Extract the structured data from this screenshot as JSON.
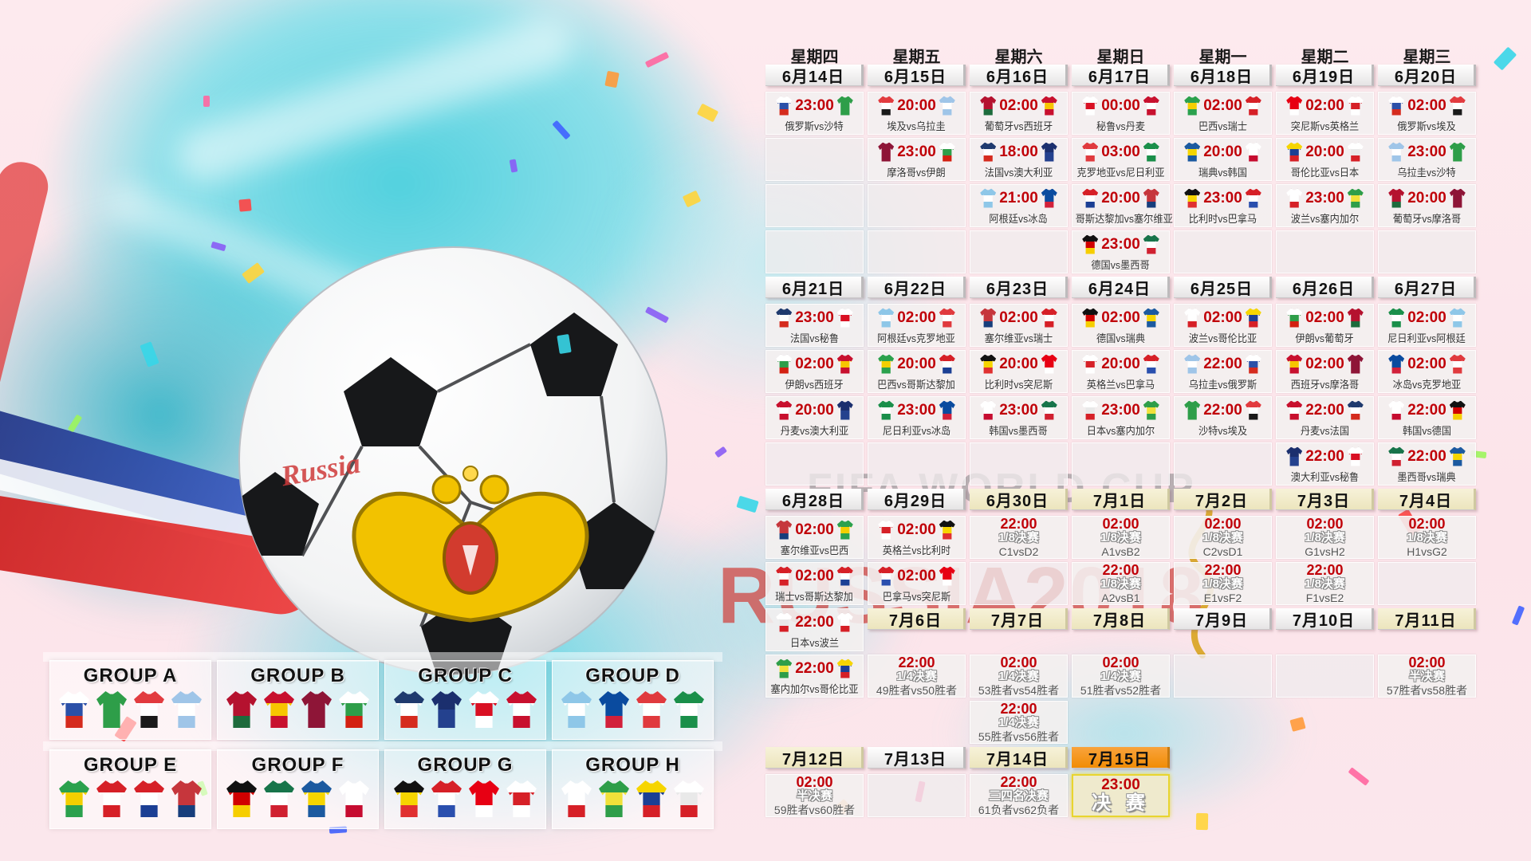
{
  "watermark": {
    "line1": "FIFA WORLD CUP",
    "line2": "RUSSIA2018"
  },
  "ball": {
    "graffiti": "Russia"
  },
  "colors": {
    "time_red": "#c00008",
    "date_orange": "#f6921e",
    "date_cream": "#f1ecca",
    "accent_teal": "#49cfdd",
    "watermark_red": "#d04844",
    "watermark_gray": "#a9a2a6"
  },
  "weekdays": [
    "星期四",
    "星期五",
    "星期六",
    "星期日",
    "星期一",
    "星期二",
    "星期三"
  ],
  "teams": {
    "俄罗斯": [
      "#ffffff",
      "#2b50a8",
      "#d52b1e"
    ],
    "沙特": [
      "#2e9e49"
    ],
    "埃及": [
      "#e23b3f",
      "#ffffff",
      "#1a1a1a"
    ],
    "乌拉圭": [
      "#9fc5e8",
      "#ffffff",
      "#9fc5e8"
    ],
    "葡萄牙": [
      "#b5122f",
      "#b5122f",
      "#1d6b3c"
    ],
    "西班牙": [
      "#c8102e",
      "#f7c500",
      "#c8102e"
    ],
    "摩洛哥": [
      "#8e1537"
    ],
    "伊朗": [
      "#ffffff",
      "#2e9e49",
      "#d32011"
    ],
    "法国": [
      "#1f3a6e",
      "#ffffff",
      "#d52b1e"
    ],
    "澳大利亚": [
      "#1b2f6e",
      "#24418e"
    ],
    "秘鲁": [
      "#ffffff",
      "#d91023",
      "#ffffff"
    ],
    "丹麦": [
      "#c8102e",
      "#ffffff",
      "#c8102e"
    ],
    "阿根廷": [
      "#8ec7e8",
      "#ffffff",
      "#8ec7e8"
    ],
    "冰岛": [
      "#0a4b9f",
      "#0a4b9f",
      "#d2203a"
    ],
    "克罗地亚": [
      "#e03a3e",
      "#ffffff",
      "#e03a3e"
    ],
    "尼日利亚": [
      "#1a8f4a",
      "#ffffff",
      "#1a8f4a"
    ],
    "巴西": [
      "#2ba14d",
      "#f3cf00",
      "#2ba14d"
    ],
    "瑞士": [
      "#d62027",
      "#ffffff",
      "#d62027"
    ],
    "哥斯达黎加": [
      "#d62027",
      "#ffffff",
      "#1b3f94"
    ],
    "塞尔维亚": [
      "#c6363c",
      "#c6363c",
      "#173e7c"
    ],
    "德国": [
      "#111111",
      "#d00000",
      "#f6ce00"
    ],
    "墨西哥": [
      "#17744a",
      "#ffffff",
      "#d02030"
    ],
    "瑞典": [
      "#1c5aa0",
      "#f6d500",
      "#1c5aa0"
    ],
    "韩国": [
      "#ffffff",
      "#ffffff",
      "#c60c30"
    ],
    "比利时": [
      "#111111",
      "#f6d500",
      "#e03030"
    ],
    "巴拿马": [
      "#d62027",
      "#ffffff",
      "#2a4fae"
    ],
    "突尼斯": [
      "#e70013",
      "#e70013",
      "#ffffff"
    ],
    "英格兰": [
      "#ffffff",
      "#d62027",
      "#ffffff"
    ],
    "波兰": [
      "#ffffff",
      "#ffffff",
      "#d62027"
    ],
    "塞内加尔": [
      "#2e9e49",
      "#f0e13a",
      "#2e9e49"
    ],
    "哥伦比亚": [
      "#f6d500",
      "#1b3f94",
      "#d62027"
    ],
    "日本": [
      "#ffffff",
      "#e9e9e9",
      "#d62027"
    ]
  },
  "groups": [
    {
      "name": "GROUP A",
      "teams": [
        "俄罗斯",
        "沙特",
        "埃及",
        "乌拉圭"
      ]
    },
    {
      "name": "GROUP B",
      "teams": [
        "葡萄牙",
        "西班牙",
        "摩洛哥",
        "伊朗"
      ]
    },
    {
      "name": "GROUP C",
      "teams": [
        "法国",
        "澳大利亚",
        "秘鲁",
        "丹麦"
      ]
    },
    {
      "name": "GROUP D",
      "teams": [
        "阿根廷",
        "冰岛",
        "克罗地亚",
        "尼日利亚"
      ]
    },
    {
      "name": "GROUP E",
      "teams": [
        "巴西",
        "瑞士",
        "哥斯达黎加",
        "塞尔维亚"
      ]
    },
    {
      "name": "GROUP F",
      "teams": [
        "德国",
        "墨西哥",
        "瑞典",
        "韩国"
      ]
    },
    {
      "name": "GROUP G",
      "teams": [
        "比利时",
        "巴拿马",
        "突尼斯",
        "英格兰"
      ]
    },
    {
      "name": "GROUP H",
      "teams": [
        "波兰",
        "塞内加尔",
        "哥伦比亚",
        "日本"
      ]
    }
  ],
  "calendar": {
    "rows": [
      {
        "type": "weekdays",
        "labels": [
          "星期四",
          "星期五",
          "星期六",
          "星期日",
          "星期一",
          "星期二",
          "星期三"
        ]
      },
      {
        "type": "dates",
        "cells": [
          {
            "t": "d",
            "label": "6月14日",
            "variant": "white"
          },
          {
            "t": "d",
            "label": "6月15日",
            "variant": "white"
          },
          {
            "t": "d",
            "label": "6月16日",
            "variant": "white"
          },
          {
            "t": "d",
            "label": "6月17日",
            "variant": "white"
          },
          {
            "t": "d",
            "label": "6月18日",
            "variant": "white"
          },
          {
            "t": "d",
            "label": "6月19日",
            "variant": "white"
          },
          {
            "t": "d",
            "label": "6月20日",
            "variant": "white"
          }
        ]
      },
      {
        "type": "cells",
        "cells": [
          {
            "t": "m",
            "time": "23:00",
            "home": "俄罗斯",
            "away": "沙特",
            "label": "俄罗斯vs沙特"
          },
          {
            "t": "m",
            "time": "20:00",
            "home": "埃及",
            "away": "乌拉圭",
            "label": "埃及vs乌拉圭"
          },
          {
            "t": "m",
            "time": "02:00",
            "home": "葡萄牙",
            "away": "西班牙",
            "label": "葡萄牙vs西班牙"
          },
          {
            "t": "m",
            "time": "00:00",
            "home": "秘鲁",
            "away": "丹麦",
            "label": "秘鲁vs丹麦"
          },
          {
            "t": "m",
            "time": "02:00",
            "home": "巴西",
            "away": "瑞士",
            "label": "巴西vs瑞士"
          },
          {
            "t": "m",
            "time": "02:00",
            "home": "突尼斯",
            "away": "英格兰",
            "label": "突尼斯vs英格兰"
          },
          {
            "t": "m",
            "time": "02:00",
            "home": "俄罗斯",
            "away": "埃及",
            "label": "俄罗斯vs埃及"
          }
        ]
      },
      {
        "type": "cells",
        "cells": [
          {
            "t": "e"
          },
          {
            "t": "m",
            "time": "23:00",
            "home": "摩洛哥",
            "away": "伊朗",
            "label": "摩洛哥vs伊朗"
          },
          {
            "t": "m",
            "time": "18:00",
            "home": "法国",
            "away": "澳大利亚",
            "label": "法国vs澳大利亚"
          },
          {
            "t": "m",
            "time": "03:00",
            "home": "克罗地亚",
            "away": "尼日利亚",
            "label": "克罗地亚vs尼日利亚"
          },
          {
            "t": "m",
            "time": "20:00",
            "home": "瑞典",
            "away": "韩国",
            "label": "瑞典vs韩国"
          },
          {
            "t": "m",
            "time": "20:00",
            "home": "哥伦比亚",
            "away": "日本",
            "label": "哥伦比亚vs日本"
          },
          {
            "t": "m",
            "time": "23:00",
            "home": "乌拉圭",
            "away": "沙特",
            "label": "乌拉圭vs沙特"
          }
        ]
      },
      {
        "type": "cells",
        "cells": [
          {
            "t": "e"
          },
          {
            "t": "e"
          },
          {
            "t": "m",
            "time": "21:00",
            "home": "阿根廷",
            "away": "冰岛",
            "label": "阿根廷vs冰岛"
          },
          {
            "t": "m",
            "time": "20:00",
            "home": "哥斯达黎加",
            "away": "塞尔维亚",
            "label": "哥斯达黎加vs塞尔维亚"
          },
          {
            "t": "m",
            "time": "23:00",
            "home": "比利时",
            "away": "巴拿马",
            "label": "比利时vs巴拿马"
          },
          {
            "t": "m",
            "time": "23:00",
            "home": "波兰",
            "away": "塞内加尔",
            "label": "波兰vs塞内加尔"
          },
          {
            "t": "m",
            "time": "20:00",
            "home": "葡萄牙",
            "away": "摩洛哥",
            "label": "葡萄牙vs摩洛哥"
          }
        ]
      },
      {
        "type": "cells",
        "cells": [
          {
            "t": "e"
          },
          {
            "t": "e"
          },
          {
            "t": "e"
          },
          {
            "t": "m",
            "time": "23:00",
            "home": "德国",
            "away": "墨西哥",
            "label": "德国vs墨西哥"
          },
          {
            "t": "e"
          },
          {
            "t": "e"
          },
          {
            "t": "e"
          }
        ]
      },
      {
        "type": "dates",
        "cells": [
          {
            "t": "d",
            "label": "6月21日",
            "variant": "white"
          },
          {
            "t": "d",
            "label": "6月22日",
            "variant": "white"
          },
          {
            "t": "d",
            "label": "6月23日",
            "variant": "white"
          },
          {
            "t": "d",
            "label": "6月24日",
            "variant": "white"
          },
          {
            "t": "d",
            "label": "6月25日",
            "variant": "white"
          },
          {
            "t": "d",
            "label": "6月26日",
            "variant": "white"
          },
          {
            "t": "d",
            "label": "6月27日",
            "variant": "white"
          }
        ]
      },
      {
        "type": "cells",
        "cells": [
          {
            "t": "m",
            "time": "23:00",
            "home": "法国",
            "away": "秘鲁",
            "label": "法国vs秘鲁"
          },
          {
            "t": "m",
            "time": "02:00",
            "home": "阿根廷",
            "away": "克罗地亚",
            "label": "阿根廷vs克罗地亚"
          },
          {
            "t": "m",
            "time": "02:00",
            "home": "塞尔维亚",
            "away": "瑞士",
            "label": "塞尔维亚vs瑞士"
          },
          {
            "t": "m",
            "time": "02:00",
            "home": "德国",
            "away": "瑞典",
            "label": "德国vs瑞典"
          },
          {
            "t": "m",
            "time": "02:00",
            "home": "波兰",
            "away": "哥伦比亚",
            "label": "波兰vs哥伦比亚"
          },
          {
            "t": "m",
            "time": "02:00",
            "home": "伊朗",
            "away": "葡萄牙",
            "label": "伊朗vs葡萄牙"
          },
          {
            "t": "m",
            "time": "02:00",
            "home": "尼日利亚",
            "away": "阿根廷",
            "label": "尼日利亚vs阿根廷"
          }
        ]
      },
      {
        "type": "cells",
        "cells": [
          {
            "t": "m",
            "time": "02:00",
            "home": "伊朗",
            "away": "西班牙",
            "label": "伊朗vs西班牙"
          },
          {
            "t": "m",
            "time": "20:00",
            "home": "巴西",
            "away": "哥斯达黎加",
            "label": "巴西vs哥斯达黎加"
          },
          {
            "t": "m",
            "time": "20:00",
            "home": "比利时",
            "away": "突尼斯",
            "label": "比利时vs突尼斯"
          },
          {
            "t": "m",
            "time": "20:00",
            "home": "英格兰",
            "away": "巴拿马",
            "label": "英格兰vs巴拿马"
          },
          {
            "t": "m",
            "time": "22:00",
            "home": "乌拉圭",
            "away": "俄罗斯",
            "label": "乌拉圭vs俄罗斯"
          },
          {
            "t": "m",
            "time": "02:00",
            "home": "西班牙",
            "away": "摩洛哥",
            "label": "西班牙vs摩洛哥"
          },
          {
            "t": "m",
            "time": "02:00",
            "home": "冰岛",
            "away": "克罗地亚",
            "label": "冰岛vs克罗地亚"
          }
        ]
      },
      {
        "type": "cells",
        "cells": [
          {
            "t": "m",
            "time": "20:00",
            "home": "丹麦",
            "away": "澳大利亚",
            "label": "丹麦vs澳大利亚"
          },
          {
            "t": "m",
            "time": "23:00",
            "home": "尼日利亚",
            "away": "冰岛",
            "label": "尼日利亚vs冰岛"
          },
          {
            "t": "m",
            "time": "23:00",
            "home": "韩国",
            "away": "墨西哥",
            "label": "韩国vs墨西哥"
          },
          {
            "t": "m",
            "time": "23:00",
            "home": "日本",
            "away": "塞内加尔",
            "label": "日本vs塞内加尔"
          },
          {
            "t": "m",
            "time": "22:00",
            "home": "沙特",
            "away": "埃及",
            "label": "沙特vs埃及"
          },
          {
            "t": "m",
            "time": "22:00",
            "home": "丹麦",
            "away": "法国",
            "label": "丹麦vs法国"
          },
          {
            "t": "m",
            "time": "22:00",
            "home": "韩国",
            "away": "德国",
            "label": "韩国vs德国"
          }
        ]
      },
      {
        "type": "cells",
        "cells": [
          {
            "t": "e"
          },
          {
            "t": "e"
          },
          {
            "t": "e"
          },
          {
            "t": "e"
          },
          {
            "t": "e"
          },
          {
            "t": "m",
            "time": "22:00",
            "home": "澳大利亚",
            "away": "秘鲁",
            "label": "澳大利亚vs秘鲁"
          },
          {
            "t": "m",
            "time": "22:00",
            "home": "墨西哥",
            "away": "瑞典",
            "label": "墨西哥vs瑞典"
          }
        ]
      },
      {
        "type": "dates",
        "cells": [
          {
            "t": "d",
            "label": "6月28日",
            "variant": "white"
          },
          {
            "t": "d",
            "label": "6月29日",
            "variant": "white"
          },
          {
            "t": "d",
            "label": "6月30日",
            "variant": "cream"
          },
          {
            "t": "d",
            "label": "7月1日",
            "variant": "cream"
          },
          {
            "t": "d",
            "label": "7月2日",
            "variant": "cream"
          },
          {
            "t": "d",
            "label": "7月3日",
            "variant": "cream"
          },
          {
            "t": "d",
            "label": "7月4日",
            "variant": "cream"
          }
        ]
      },
      {
        "type": "cells",
        "cells": [
          {
            "t": "m",
            "time": "02:00",
            "home": "塞尔维亚",
            "away": "巴西",
            "label": "塞尔维亚vs巴西"
          },
          {
            "t": "m",
            "time": "02:00",
            "home": "英格兰",
            "away": "比利时",
            "label": "英格兰vs比利时"
          },
          {
            "t": "k",
            "time": "22:00",
            "round": "1/8决赛",
            "matchup": "C1vsD2"
          },
          {
            "t": "k",
            "time": "02:00",
            "round": "1/8决赛",
            "matchup": "A1vsB2"
          },
          {
            "t": "k",
            "time": "02:00",
            "round": "1/8决赛",
            "matchup": "C2vsD1"
          },
          {
            "t": "k",
            "time": "02:00",
            "round": "1/8决赛",
            "matchup": "G1vsH2"
          },
          {
            "t": "k",
            "time": "02:00",
            "round": "1/8决赛",
            "matchup": "H1vsG2"
          }
        ]
      },
      {
        "type": "cells",
        "cells": [
          {
            "t": "m",
            "time": "02:00",
            "home": "瑞士",
            "away": "哥斯达黎加",
            "label": "瑞士vs哥斯达黎加"
          },
          {
            "t": "m",
            "time": "02:00",
            "home": "巴拿马",
            "away": "突尼斯",
            "label": "巴拿马vs突尼斯"
          },
          {
            "t": "e"
          },
          {
            "t": "k",
            "time": "22:00",
            "round": "1/8决赛",
            "matchup": "A2vsB1"
          },
          {
            "t": "k",
            "time": "22:00",
            "round": "1/8决赛",
            "matchup": "E1vsF2"
          },
          {
            "t": "k",
            "time": "22:00",
            "round": "1/8决赛",
            "matchup": "F1vsE2"
          },
          {
            "t": "e"
          }
        ]
      },
      {
        "type": "cells",
        "cells": [
          {
            "t": "m",
            "time": "22:00",
            "home": "日本",
            "away": "波兰",
            "label": "日本vs波兰"
          },
          {
            "t": "d",
            "label": "7月6日",
            "variant": "cream"
          },
          {
            "t": "d",
            "label": "7月7日",
            "variant": "cream"
          },
          {
            "t": "d",
            "label": "7月8日",
            "variant": "cream"
          },
          {
            "t": "d",
            "label": "7月9日",
            "variant": "white"
          },
          {
            "t": "d",
            "label": "7月10日",
            "variant": "white"
          },
          {
            "t": "d",
            "label": "7月11日",
            "variant": "cream"
          }
        ]
      },
      {
        "type": "cells",
        "cells": [
          {
            "t": "m",
            "time": "22:00",
            "home": "塞内加尔",
            "away": "哥伦比亚",
            "label": "塞内加尔vs哥伦比亚"
          },
          {
            "t": "k",
            "time": "22:00",
            "round": "1/4决赛",
            "matchup": "49胜者vs50胜者"
          },
          {
            "t": "k",
            "time": "02:00",
            "round": "1/4决赛",
            "matchup": "53胜者vs54胜者"
          },
          {
            "t": "k",
            "time": "02:00",
            "round": "1/4决赛",
            "matchup": "51胜者vs52胜者"
          },
          {
            "t": "e"
          },
          {
            "t": "e"
          },
          {
            "t": "k",
            "time": "02:00",
            "round": "半决赛",
            "matchup": "57胜者vs58胜者"
          }
        ]
      },
      {
        "type": "cells",
        "cells": [
          {
            "t": "n"
          },
          {
            "t": "n"
          },
          {
            "t": "k",
            "time": "22:00",
            "round": "1/4决赛",
            "matchup": "55胜者vs56胜者"
          },
          {
            "t": "n"
          },
          {
            "t": "n"
          },
          {
            "t": "n"
          },
          {
            "t": "n"
          }
        ]
      },
      {
        "type": "dates",
        "cells": [
          {
            "t": "d",
            "label": "7月12日",
            "variant": "cream"
          },
          {
            "t": "d",
            "label": "7月13日",
            "variant": "white"
          },
          {
            "t": "d",
            "label": "7月14日",
            "variant": "cream"
          },
          {
            "t": "d",
            "label": "7月15日",
            "variant": "orange"
          },
          {
            "t": "n"
          },
          {
            "t": "n"
          },
          {
            "t": "n"
          }
        ]
      },
      {
        "type": "cells",
        "cells": [
          {
            "t": "k",
            "time": "02:00",
            "round": "半决赛",
            "matchup": "59胜者vs60胜者"
          },
          {
            "t": "e"
          },
          {
            "t": "k",
            "time": "22:00",
            "round": "三四名决赛",
            "matchup": "61负者vs62负者"
          },
          {
            "t": "f",
            "time": "23:00",
            "label": "决 赛"
          },
          {
            "t": "n"
          },
          {
            "t": "n"
          },
          {
            "t": "n"
          }
        ]
      }
    ]
  }
}
